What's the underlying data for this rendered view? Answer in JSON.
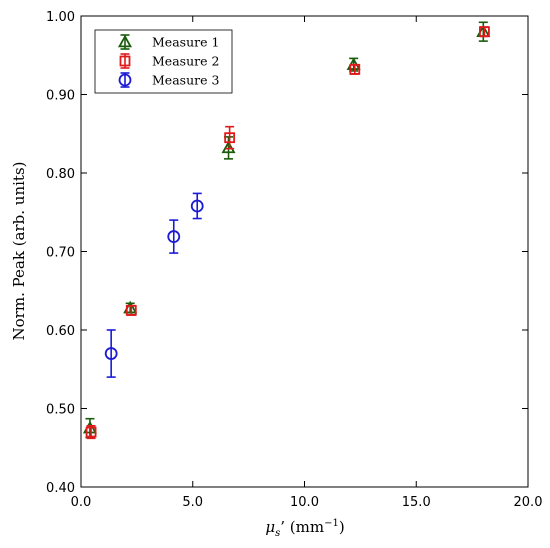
{
  "chart_data": {
    "type": "scatter",
    "title": "",
    "xlabel": "μs' (mm⁻¹)",
    "xlabel_main": "μ",
    "xlabel_sub": "s",
    "xlabel_rest": "’ (mm",
    "xlabel_sup": "−1",
    "xlabel_close": ")",
    "ylabel": "Norm. Peak (arb. units)",
    "xlim": [
      0,
      20
    ],
    "ylim": [
      0.4,
      1.0
    ],
    "xticks": [
      0,
      5,
      10,
      15,
      20
    ],
    "xtick_labels": [
      "0.0",
      "5.0",
      "10.0",
      "15.0",
      "20.0"
    ],
    "yticks": [
      0.4,
      0.5,
      0.6,
      0.7,
      0.8,
      0.9,
      1.0
    ],
    "ytick_labels": [
      "0.40",
      "0.50",
      "0.60",
      "0.70",
      "0.80",
      "0.90",
      "1.00"
    ],
    "grid": false,
    "legend_position": "top-left",
    "series": [
      {
        "name": "Measure 1",
        "marker": "triangle",
        "color": "#1a5c0c",
        "x": [
          0.4,
          2.2,
          6.6,
          12.2,
          18.0
        ],
        "y": [
          0.475,
          0.628,
          0.832,
          0.938,
          0.98
        ],
        "err": [
          0.012,
          0.006,
          0.014,
          0.008,
          0.012
        ]
      },
      {
        "name": "Measure 2",
        "marker": "square",
        "color": "#e0191b",
        "x": [
          0.45,
          2.25,
          6.65,
          12.25,
          18.05
        ],
        "y": [
          0.47,
          0.625,
          0.845,
          0.932,
          0.98
        ],
        "err": [
          0.008,
          0.006,
          0.014,
          0.006,
          0.006
        ]
      },
      {
        "name": "Measure 3",
        "marker": "circle",
        "color": "#1b1bd6",
        "x": [
          1.35,
          4.15,
          5.2
        ],
        "y": [
          0.57,
          0.719,
          0.758
        ],
        "err": [
          0.03,
          0.021,
          0.016
        ]
      }
    ]
  }
}
